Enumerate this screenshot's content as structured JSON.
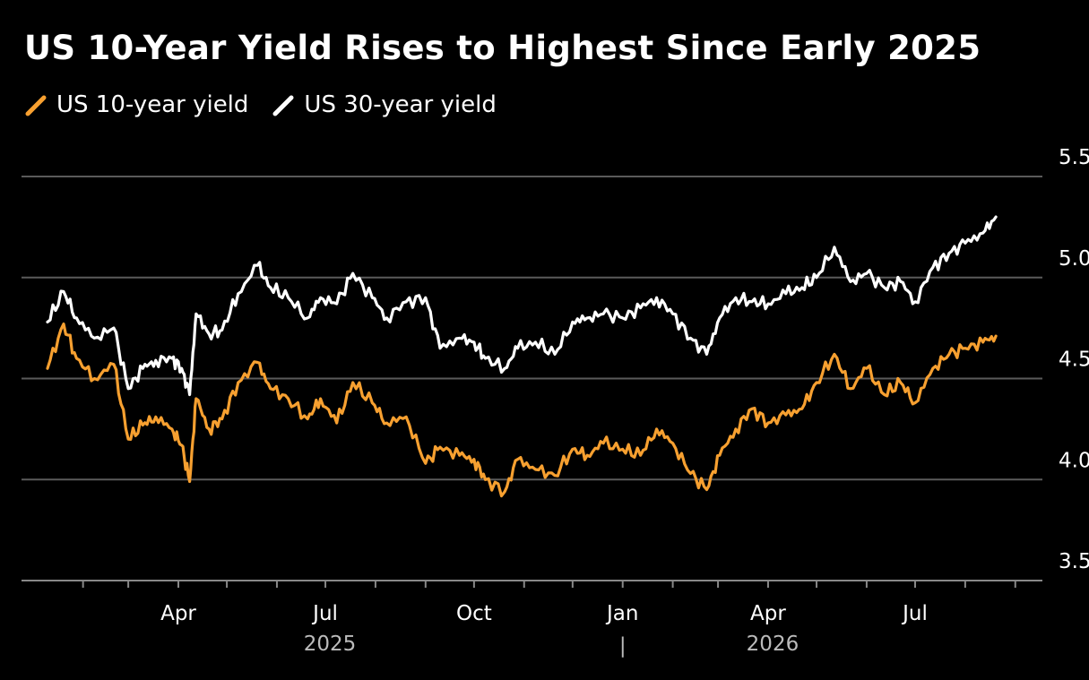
{
  "title": "US 10-Year Yield Rises to Highest Since Early 2025",
  "chart_data": {
    "type": "line",
    "title": "US 10-Year Yield Rises to Highest Since Early 2025",
    "xlabel": "",
    "ylabel": "",
    "ylim": [
      3.5,
      5.5
    ],
    "xlim": [
      "2025-01-01",
      "2026-08-31"
    ],
    "y_ticks": [
      "5.5%",
      "5.0",
      "4.5",
      "4.0",
      "3.5"
    ],
    "y_tick_values": [
      5.5,
      5.0,
      4.5,
      4.0,
      3.5
    ],
    "x_ticks": [
      {
        "label": "Apr",
        "date": "2025-04-01"
      },
      {
        "label": "Jul",
        "date": "2025-07-01"
      },
      {
        "label": "Oct",
        "date": "2025-10-01"
      },
      {
        "label": "Jan",
        "date": "2026-01-01"
      },
      {
        "label": "Apr",
        "date": "2026-04-01"
      },
      {
        "label": "Jul",
        "date": "2026-07-01"
      }
    ],
    "year_labels": [
      {
        "label": "2025",
        "date": "2025-07-01"
      },
      {
        "label": "2026",
        "date": "2026-04-01"
      }
    ],
    "year_separator": "|",
    "grid": true,
    "legend_position": "top-left",
    "series": [
      {
        "name": "US 10-year yield",
        "color": "#f7a030",
        "x": [
          "2025-01-10",
          "2025-01-20",
          "2025-01-28",
          "2025-02-08",
          "2025-02-20",
          "2025-03-01",
          "2025-03-10",
          "2025-03-18",
          "2025-03-28",
          "2025-04-03",
          "2025-04-08",
          "2025-04-12",
          "2025-04-20",
          "2025-04-28",
          "2025-05-08",
          "2025-05-20",
          "2025-05-28",
          "2025-06-08",
          "2025-06-20",
          "2025-06-28",
          "2025-07-08",
          "2025-07-18",
          "2025-07-30",
          "2025-08-08",
          "2025-08-20",
          "2025-09-01",
          "2025-09-10",
          "2025-09-22",
          "2025-10-01",
          "2025-10-08",
          "2025-10-20",
          "2025-10-28",
          "2025-11-08",
          "2025-11-20",
          "2025-12-01",
          "2025-12-10",
          "2025-12-20",
          "2026-01-01",
          "2026-01-12",
          "2026-01-22",
          "2026-02-01",
          "2026-02-12",
          "2026-02-22",
          "2026-03-02",
          "2026-03-12",
          "2026-03-22",
          "2026-04-01",
          "2026-04-12",
          "2026-04-22",
          "2026-05-01",
          "2026-05-12",
          "2026-05-22",
          "2026-06-01",
          "2026-06-12",
          "2026-06-22",
          "2026-07-01",
          "2026-07-12",
          "2026-07-22",
          "2026-08-01",
          "2026-08-12",
          "2026-08-20"
        ],
        "values": [
          4.55,
          4.77,
          4.6,
          4.5,
          4.57,
          4.2,
          4.27,
          4.31,
          4.25,
          4.17,
          3.99,
          4.4,
          4.25,
          4.3,
          4.48,
          4.58,
          4.45,
          4.4,
          4.3,
          4.4,
          4.28,
          4.48,
          4.38,
          4.28,
          4.31,
          4.08,
          4.16,
          4.12,
          4.1,
          4.0,
          3.94,
          4.1,
          4.05,
          4.02,
          4.15,
          4.12,
          4.18,
          4.15,
          4.12,
          4.25,
          4.18,
          4.03,
          3.95,
          4.12,
          4.25,
          4.35,
          4.28,
          4.32,
          4.35,
          4.48,
          4.62,
          4.45,
          4.55,
          4.42,
          4.48,
          4.38,
          4.55,
          4.62,
          4.65,
          4.68,
          4.71
        ]
      },
      {
        "name": "US 30-year yield",
        "color": "#ffffff",
        "x": [
          "2025-01-10",
          "2025-01-20",
          "2025-01-28",
          "2025-02-08",
          "2025-02-20",
          "2025-03-01",
          "2025-03-10",
          "2025-03-18",
          "2025-03-28",
          "2025-04-03",
          "2025-04-08",
          "2025-04-12",
          "2025-04-20",
          "2025-04-28",
          "2025-05-08",
          "2025-05-20",
          "2025-05-28",
          "2025-06-08",
          "2025-06-20",
          "2025-06-28",
          "2025-07-08",
          "2025-07-18",
          "2025-07-30",
          "2025-08-08",
          "2025-08-20",
          "2025-09-01",
          "2025-09-10",
          "2025-09-22",
          "2025-10-01",
          "2025-10-08",
          "2025-10-20",
          "2025-10-28",
          "2025-11-08",
          "2025-11-20",
          "2025-12-01",
          "2025-12-10",
          "2025-12-20",
          "2026-01-01",
          "2026-01-12",
          "2026-01-22",
          "2026-02-01",
          "2026-02-12",
          "2026-02-22",
          "2026-03-02",
          "2026-03-12",
          "2026-03-22",
          "2026-04-01",
          "2026-04-12",
          "2026-04-22",
          "2026-05-01",
          "2026-05-12",
          "2026-05-22",
          "2026-06-01",
          "2026-06-12",
          "2026-06-22",
          "2026-07-01",
          "2026-07-12",
          "2026-07-22",
          "2026-08-01",
          "2026-08-12",
          "2026-08-20"
        ],
        "values": [
          4.78,
          4.93,
          4.8,
          4.7,
          4.75,
          4.45,
          4.55,
          4.59,
          4.6,
          4.55,
          4.42,
          4.82,
          4.72,
          4.74,
          4.92,
          5.06,
          4.95,
          4.9,
          4.8,
          4.9,
          4.87,
          5.02,
          4.9,
          4.8,
          4.88,
          4.9,
          4.65,
          4.7,
          4.68,
          4.6,
          4.55,
          4.65,
          4.68,
          4.62,
          4.78,
          4.8,
          4.82,
          4.8,
          4.85,
          4.9,
          4.82,
          4.7,
          4.62,
          4.8,
          4.9,
          4.88,
          4.87,
          4.92,
          4.95,
          5.0,
          5.15,
          4.98,
          5.02,
          4.95,
          4.98,
          4.88,
          5.05,
          5.12,
          5.17,
          5.22,
          5.3
        ]
      }
    ]
  }
}
